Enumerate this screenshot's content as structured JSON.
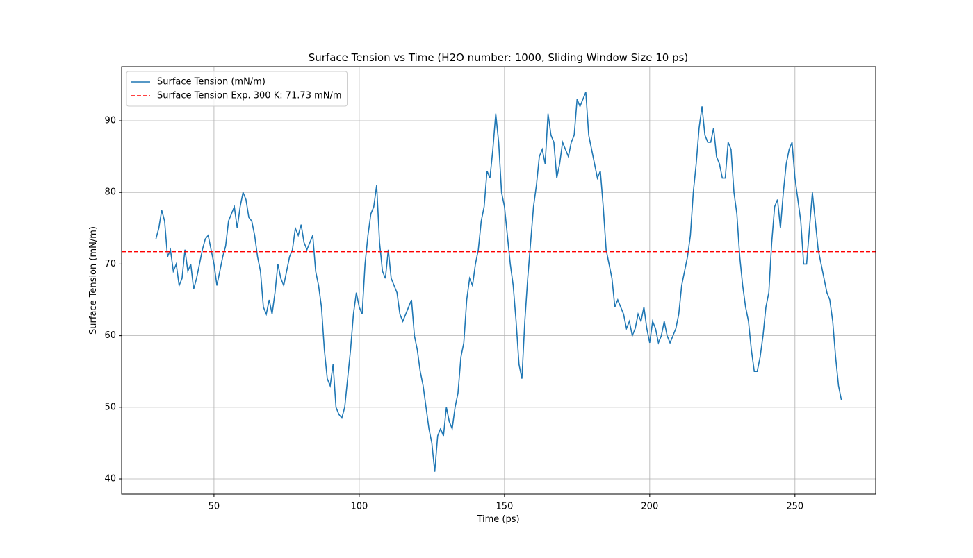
{
  "chart_data": {
    "type": "line",
    "title": "Surface Tension vs Time (H2O number: 1000, Sliding Window Size 10 ps)",
    "x_label": "Time (ps)",
    "y_label": "Surface Tension (mN/m)",
    "x": [
      30,
      31,
      32,
      33,
      34,
      35,
      36,
      37,
      38,
      39,
      40,
      41,
      42,
      43,
      44,
      45,
      46,
      47,
      48,
      49,
      50,
      51,
      52,
      53,
      54,
      55,
      56,
      57,
      58,
      59,
      60,
      61,
      62,
      63,
      64,
      65,
      66,
      67,
      68,
      69,
      70,
      71,
      72,
      73,
      74,
      75,
      76,
      77,
      78,
      79,
      80,
      81,
      82,
      83,
      84,
      85,
      86,
      87,
      88,
      89,
      90,
      91,
      92,
      93,
      94,
      95,
      96,
      97,
      98,
      99,
      100,
      101,
      102,
      103,
      104,
      105,
      106,
      107,
      108,
      109,
      110,
      111,
      112,
      113,
      114,
      115,
      116,
      117,
      118,
      119,
      120,
      121,
      122,
      123,
      124,
      125,
      126,
      127,
      128,
      129,
      130,
      131,
      132,
      133,
      134,
      135,
      136,
      137,
      138,
      139,
      140,
      141,
      142,
      143,
      144,
      145,
      146,
      147,
      148,
      149,
      150,
      151,
      152,
      153,
      154,
      155,
      156,
      157,
      158,
      159,
      160,
      161,
      162,
      163,
      164,
      165,
      166,
      167,
      168,
      169,
      170,
      171,
      172,
      173,
      174,
      175,
      176,
      177,
      178,
      179,
      180,
      181,
      182,
      183,
      184,
      185,
      186,
      187,
      188,
      189,
      190,
      191,
      192,
      193,
      194,
      195,
      196,
      197,
      198,
      199,
      200,
      201,
      202,
      203,
      204,
      205,
      206,
      207,
      208,
      209,
      210,
      211,
      212,
      213,
      214,
      215,
      216,
      217,
      218,
      219,
      220,
      221,
      222,
      223,
      224,
      225,
      226,
      227,
      228,
      229,
      230,
      231,
      232,
      233,
      234,
      235,
      236,
      237,
      238,
      239,
      240,
      241,
      242,
      243,
      244,
      245,
      246,
      247,
      248,
      249,
      250,
      251,
      252,
      253,
      254,
      255,
      256,
      257,
      258,
      259,
      260,
      261,
      262,
      263,
      264,
      265,
      266
    ],
    "series": [
      {
        "name": "Surface Tension (mN/m)",
        "color": "#1f77b4",
        "values": [
          73.5,
          75,
          77.5,
          76,
          71,
          72,
          69,
          70,
          67,
          68,
          72,
          69,
          70,
          66.5,
          68,
          70,
          72,
          73.5,
          74,
          72,
          70,
          67,
          69,
          71,
          72.5,
          76,
          77,
          78,
          75,
          78,
          80,
          79,
          76.5,
          76,
          74,
          71,
          69,
          64,
          63,
          65,
          63,
          66,
          70,
          68,
          67,
          69,
          71,
          72,
          75,
          74,
          75.5,
          73,
          72,
          73,
          74,
          69,
          67,
          64,
          58,
          54,
          53,
          56,
          50,
          49,
          48.5,
          50,
          54,
          58,
          63,
          66,
          64,
          63,
          70,
          74,
          77,
          78,
          81,
          73,
          69,
          68,
          72,
          68,
          67,
          66,
          63,
          62,
          63,
          64,
          65,
          60,
          58,
          55,
          53,
          50,
          47,
          45,
          41,
          46,
          47,
          46,
          50,
          48,
          47,
          50,
          52,
          57,
          59,
          65,
          68,
          67,
          70,
          72,
          76,
          78,
          83,
          82,
          86,
          91,
          87,
          80,
          78,
          74,
          70,
          67,
          62,
          56,
          54,
          62,
          68,
          73,
          78,
          81,
          85,
          86,
          84,
          91,
          88,
          87,
          82,
          84,
          87,
          86,
          85,
          87,
          88,
          93,
          92,
          93,
          94,
          88,
          86,
          84,
          82,
          83,
          78,
          72,
          70,
          68,
          64,
          65,
          64,
          63,
          61,
          62,
          60,
          61,
          63,
          62,
          64,
          61,
          59,
          62,
          61,
          59,
          60,
          62,
          60,
          59,
          60,
          61,
          63,
          67,
          69,
          71,
          74,
          80,
          84,
          89,
          92,
          88,
          87,
          87,
          89,
          85,
          84,
          82,
          82,
          87,
          86,
          80,
          77,
          71,
          67,
          64,
          62,
          58,
          55,
          55,
          57,
          60,
          64,
          66,
          73,
          78,
          79,
          75,
          80,
          84,
          86,
          87,
          82,
          79,
          76,
          70,
          70,
          75,
          80,
          76,
          72,
          70,
          68,
          66,
          65,
          62,
          57,
          53,
          51
        ]
      }
    ],
    "hlines": [
      {
        "name": "Surface Tension Exp. 300 K: 71.73 mN/m",
        "value": 71.73,
        "color": "#ff0000",
        "style": "dashed"
      }
    ],
    "xlim": [
      18.2,
      277.8
    ],
    "ylim": [
      37.87,
      97.56
    ],
    "xticks": [
      50,
      100,
      150,
      200,
      250
    ],
    "yticks": [
      40,
      50,
      60,
      70,
      80,
      90
    ],
    "grid": true,
    "legend": "upper left"
  }
}
